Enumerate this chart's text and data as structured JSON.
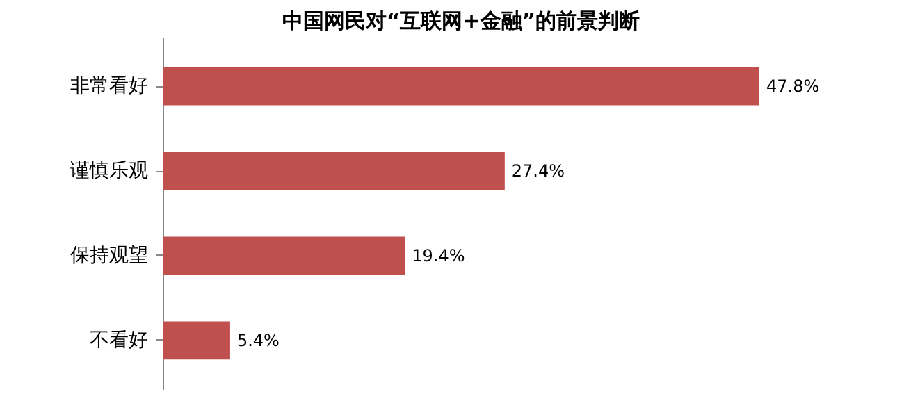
{
  "chart_data": {
    "type": "bar",
    "orientation": "horizontal",
    "title": "中国网民对“互联网+金融”的前景判断",
    "categories": [
      "非常看好",
      "谨慎乐观",
      "保持观望",
      "不看好"
    ],
    "values": [
      47.8,
      27.4,
      19.4,
      5.4
    ],
    "value_labels": [
      "47.8%",
      "27.4%",
      "19.4%",
      "5.4%"
    ],
    "color": "#c0504d",
    "grid": false
  }
}
